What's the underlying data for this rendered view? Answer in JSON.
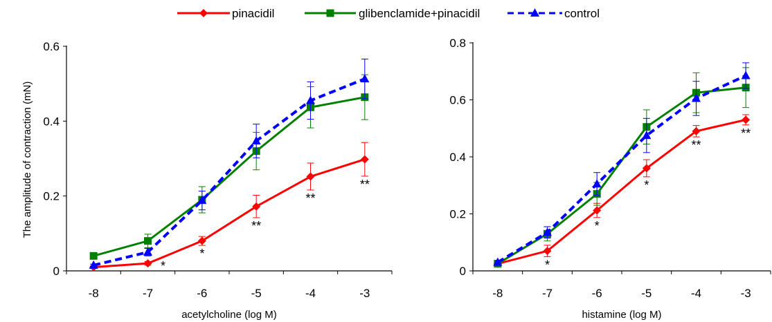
{
  "legend": [
    {
      "name": "pinacidil"
    },
    {
      "name": "glibenclamide+pinacidil"
    },
    {
      "name": "control"
    }
  ],
  "shared_ylabel": "The amplitude of contraction (mN)",
  "colors": {
    "pinacidil": "#ff0000",
    "glibenclamide_pinacidil": "#008000",
    "control": "#0000ff"
  },
  "chart_data": [
    {
      "type": "line",
      "title": "",
      "xlabel": "acetylcholine (log M)",
      "ylabel": "The amplitude of contraction (mN)",
      "x": [
        -8,
        -7,
        -6,
        -5,
        -4,
        -3
      ],
      "xticks": [
        "-8",
        "-7",
        "-6",
        "-5",
        "-4",
        "-3"
      ],
      "yticks": [
        "0",
        "0.2",
        "0.4",
        "0.6"
      ],
      "ylim": [
        0,
        0.6
      ],
      "grid": false,
      "legend_position": "top",
      "series": [
        {
          "name": "pinacidil",
          "color": "#ff0000",
          "marker": "diamond",
          "dash": "solid",
          "values": [
            0.01,
            0.02,
            0.08,
            0.172,
            0.252,
            0.298
          ],
          "errors": [
            0.003,
            0.005,
            0.012,
            0.03,
            0.036,
            0.045
          ]
        },
        {
          "name": "glibenclamide+pinacidil",
          "color": "#008000",
          "marker": "square",
          "dash": "solid",
          "values": [
            0.04,
            0.08,
            0.19,
            0.32,
            0.437,
            0.464
          ],
          "errors": [
            0.005,
            0.018,
            0.035,
            0.05,
            0.055,
            0.06
          ]
        },
        {
          "name": "control",
          "color": "#0000ff",
          "marker": "triangle",
          "dash": "dashed",
          "values": [
            0.015,
            0.05,
            0.188,
            0.347,
            0.455,
            0.513
          ],
          "errors": [
            0.003,
            0.01,
            0.025,
            0.045,
            0.05,
            0.053
          ]
        }
      ],
      "annotations": [
        {
          "x": -7,
          "text": "*"
        },
        {
          "x": -6,
          "text": "*"
        },
        {
          "x": -5,
          "text": "**"
        },
        {
          "x": -4,
          "text": "**"
        },
        {
          "x": -3,
          "text": "**"
        }
      ]
    },
    {
      "type": "line",
      "title": "",
      "xlabel": "histamine (log M)",
      "ylabel": "",
      "x": [
        -8,
        -7,
        -6,
        -5,
        -4,
        -3
      ],
      "xticks": [
        "-8",
        "-7",
        "-6",
        "-5",
        "-4",
        "-3"
      ],
      "yticks": [
        "0",
        "0.2",
        "0.4",
        "0.6",
        "0.8"
      ],
      "ylim": [
        0,
        0.8
      ],
      "grid": false,
      "legend_position": "top",
      "series": [
        {
          "name": "pinacidil",
          "color": "#ff0000",
          "marker": "diamond",
          "dash": "solid",
          "values": [
            0.025,
            0.07,
            0.212,
            0.36,
            0.49,
            0.53
          ],
          "errors": [
            0.005,
            0.02,
            0.025,
            0.03,
            0.02,
            0.018
          ]
        },
        {
          "name": "glibenclamide+pinacidil",
          "color": "#008000",
          "marker": "square",
          "dash": "solid",
          "values": [
            0.025,
            0.13,
            0.27,
            0.505,
            0.625,
            0.643
          ],
          "errors": [
            0.005,
            0.025,
            0.04,
            0.06,
            0.07,
            0.07
          ]
        },
        {
          "name": "control",
          "color": "#0000ff",
          "marker": "triangle",
          "dash": "dashed",
          "values": [
            0.03,
            0.135,
            0.305,
            0.475,
            0.605,
            0.685
          ],
          "errors": [
            0.006,
            0.02,
            0.04,
            0.06,
            0.06,
            0.045
          ]
        }
      ],
      "annotations": [
        {
          "x": -7,
          "text": "*"
        },
        {
          "x": -6,
          "text": "*"
        },
        {
          "x": -5,
          "text": "*"
        },
        {
          "x": -4,
          "text": "**"
        },
        {
          "x": -3,
          "text": "**"
        }
      ]
    }
  ]
}
